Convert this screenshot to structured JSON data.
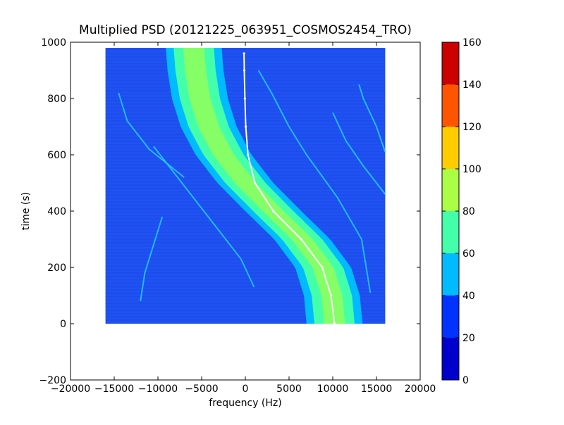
{
  "chart_data": {
    "type": "heatmap",
    "title": "Multiplied PSD (20121225_063951_COSMOS2454_TRO)",
    "xlabel": "frequency (Hz)",
    "ylabel": "time (s)",
    "xlim": [
      -20000,
      20000
    ],
    "ylim": [
      -200,
      1000
    ],
    "xticks": [
      -20000,
      -15000,
      -10000,
      -5000,
      0,
      5000,
      10000,
      15000,
      20000
    ],
    "xtick_labels": [
      "−20000",
      "−15000",
      "−10000",
      "−5000",
      "0",
      "5000",
      "10000",
      "15000",
      "20000"
    ],
    "yticks": [
      -200,
      0,
      200,
      400,
      600,
      800,
      1000
    ],
    "ytick_labels": [
      "−200",
      "0",
      "200",
      "400",
      "600",
      "800",
      "1000"
    ],
    "grid": false,
    "data_extent": {
      "x": [
        -16000,
        16000
      ],
      "y": [
        0,
        980
      ]
    },
    "colorbar": {
      "levels": [
        0,
        20,
        40,
        60,
        80,
        100,
        120,
        140,
        160
      ],
      "labels": [
        "0",
        "20",
        "40",
        "60",
        "80",
        "100",
        "120",
        "140",
        "160"
      ],
      "colors": [
        "#0000cd",
        "#0033ff",
        "#00bbff",
        "#44ffaa",
        "#aaff44",
        "#ffcc00",
        "#ff5500",
        "#cc0000"
      ]
    },
    "background_level_color": "#1e50f0",
    "main_band": {
      "description_points_time": [
        0,
        100,
        200,
        300,
        400,
        500,
        600,
        700,
        800,
        900,
        980
      ],
      "center_freq": [
        10200,
        9900,
        8900,
        6500,
        3200,
        0,
        -2500,
        -4200,
        -5200,
        -5700,
        -5900
      ],
      "outer_halfwidth_hz": 3200,
      "mid_halfwidth_hz": 2300,
      "core_halfwidth_hz": 1200
    },
    "doppler_track": {
      "color": "#ffffff",
      "time": [
        0,
        100,
        200,
        300,
        400,
        500,
        600,
        700,
        800,
        900,
        960
      ],
      "freq": [
        10200,
        9800,
        8800,
        6400,
        3200,
        1100,
        300,
        50,
        -50,
        -120,
        -150
      ]
    },
    "faint_lines": [
      {
        "time": [
          110,
          300,
          450,
          600,
          700,
          820,
          900
        ],
        "freq": [
          14300,
          13300,
          10500,
          7000,
          5000,
          3000,
          1500
        ]
      },
      {
        "time": [
          460,
          560,
          650,
          750
        ],
        "freq": [
          16000,
          13500,
          11500,
          10000
        ]
      },
      {
        "time": [
          610,
          700,
          800,
          850
        ],
        "freq": [
          16000,
          15000,
          13500,
          13000
        ]
      },
      {
        "time": [
          130,
          230,
          330,
          430,
          530,
          630
        ],
        "freq": [
          1000,
          -500,
          -3000,
          -5500,
          -8000,
          -10500
        ]
      },
      {
        "time": [
          520,
          620,
          720,
          820
        ],
        "freq": [
          -7000,
          -11000,
          -13500,
          -14500
        ]
      },
      {
        "time": [
          80,
          180,
          280,
          380
        ],
        "freq": [
          -12000,
          -11500,
          -10500,
          -9500
        ]
      }
    ]
  }
}
